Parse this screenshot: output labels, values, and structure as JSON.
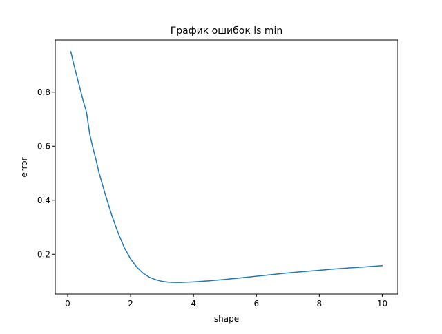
{
  "chart_data": {
    "type": "line",
    "title": "График ошибок ls min",
    "xlabel": "shape",
    "ylabel": "error",
    "xlim": [
      -0.395,
      10.495
    ],
    "ylim": [
      0.053,
      0.993
    ],
    "xticks": [
      0,
      2,
      4,
      6,
      8,
      10
    ],
    "xtick_labels": [
      "0",
      "2",
      "4",
      "6",
      "8",
      "10"
    ],
    "yticks": [
      0.2,
      0.4,
      0.6,
      0.8
    ],
    "ytick_labels": [
      "0.2",
      "0.4",
      "0.6",
      "0.8"
    ],
    "grid": false,
    "series": [
      {
        "color": "#1f77b4",
        "x": [
          0.1,
          0.2,
          0.3,
          0.4,
          0.5,
          0.55,
          0.6,
          0.65,
          0.7,
          0.8,
          0.9,
          1.0,
          1.2,
          1.4,
          1.6,
          1.8,
          2.0,
          2.2,
          2.4,
          2.6,
          2.8,
          3.0,
          3.2,
          3.4,
          3.6,
          3.8,
          4.0,
          4.5,
          5.0,
          5.5,
          6.0,
          6.5,
          7.0,
          7.5,
          8.0,
          8.5,
          9.0,
          9.5,
          10.0
        ],
        "y": [
          0.95,
          0.9,
          0.855,
          0.81,
          0.765,
          0.745,
          0.725,
          0.685,
          0.645,
          0.595,
          0.55,
          0.5,
          0.42,
          0.345,
          0.28,
          0.225,
          0.183,
          0.152,
          0.13,
          0.115,
          0.106,
          0.1,
          0.097,
          0.096,
          0.096,
          0.097,
          0.098,
          0.102,
          0.107,
          0.113,
          0.119,
          0.125,
          0.131,
          0.136,
          0.141,
          0.146,
          0.15,
          0.154,
          0.158
        ]
      }
    ]
  }
}
